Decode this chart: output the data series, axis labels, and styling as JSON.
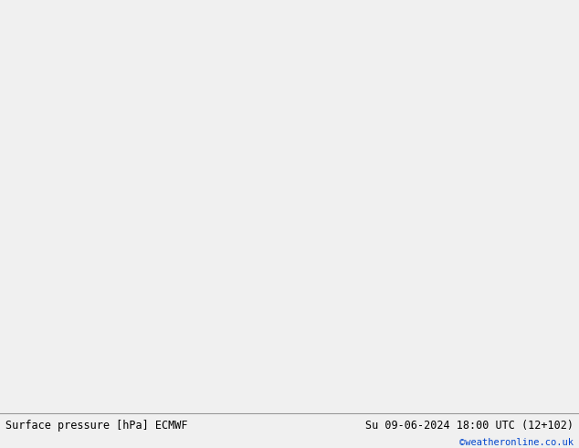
{
  "title_left": "Surface pressure [hPa] ECMWF",
  "title_right": "Su 09-06-2024 18:00 UTC (12+102)",
  "watermark": "©weatheronline.co.uk",
  "figsize": [
    6.34,
    4.9
  ],
  "dpi": 100,
  "land_color": "#c8e8b0",
  "sea_color": "#e0e8e0",
  "coast_color": "#888888",
  "border_color": "#aaaaaa",
  "bottom_bar_color": "#f0f0f0",
  "bottom_bar_height": 0.085,
  "map_extent": [
    -45,
    45,
    27,
    72
  ],
  "red_color": "#cc0000",
  "blue_color": "#0044cc",
  "black_color": "#111111",
  "line_width": 1.4
}
